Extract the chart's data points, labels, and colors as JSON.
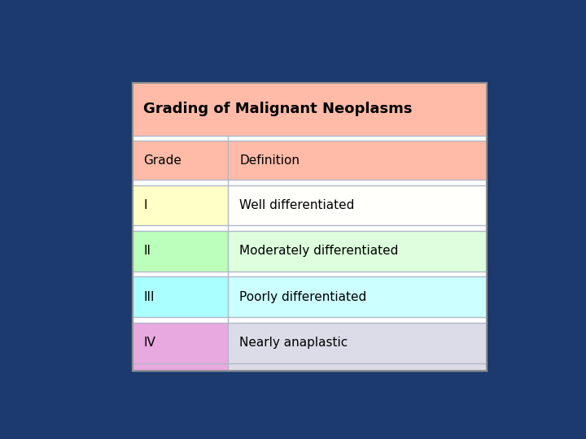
{
  "title": "Grading of Malignant Neoplasms",
  "title_bg": "#FFBBA8",
  "header_row": [
    "Grade",
    "Definition"
  ],
  "header_bg": "#FFBBA8",
  "rows": [
    [
      "I",
      "Well differentiated"
    ],
    [
      "II",
      "Moderately differentiated"
    ],
    [
      "III",
      "Poorly differentiated"
    ],
    [
      "IV",
      "Nearly anaplastic"
    ]
  ],
  "row_colors_left": [
    "#FFFFC8",
    "#BBFFBB",
    "#AAFFFF",
    "#E8A8E0"
  ],
  "row_colors_right": [
    "#FFFFFB",
    "#DDFFDD",
    "#CCFFFF",
    "#DCDCE8"
  ],
  "extra_row_left": [
    "#FFFFC8",
    "#BBFFBB",
    "#AAFFFF",
    "#E8A8E0"
  ],
  "extra_row_right": [
    "#FFFFFB",
    "#DDFFDD",
    "#CCFFFF",
    "#DCDCE8"
  ],
  "separator_color": "#B0B8C8",
  "outer_border_color": "#909090",
  "bg_color": "#1C3A6E",
  "col_split": 0.27,
  "font_size": 11,
  "title_font_size": 13
}
